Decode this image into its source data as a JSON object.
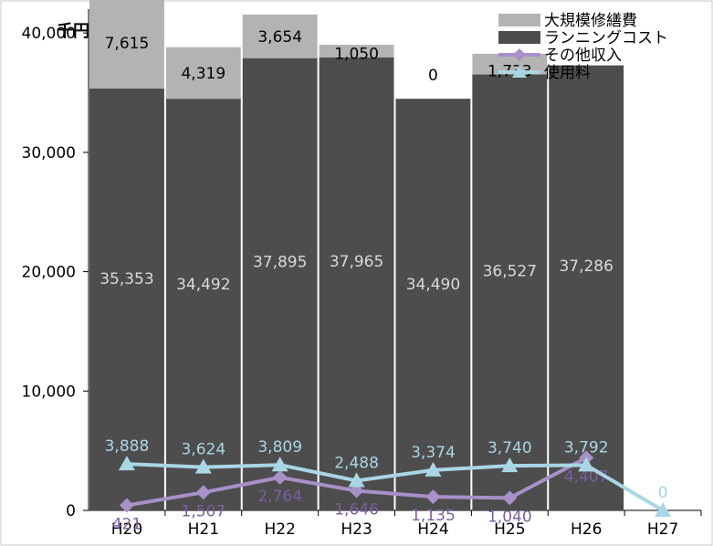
{
  "chart_data": {
    "type": "bar",
    "unit_label": "千円",
    "categories": [
      "H20",
      "H21",
      "H22",
      "H23",
      "H24",
      "H25",
      "H26",
      "H27"
    ],
    "ylim": [
      0,
      42000
    ],
    "yticks": [
      0,
      10000,
      20000,
      30000,
      40000
    ],
    "ytick_labels": [
      "0",
      "10,000",
      "20,000",
      "30,000",
      "40,000"
    ],
    "grid": false,
    "legend_position": "top-right",
    "stacked_bars": [
      {
        "name": "ランニングコスト",
        "color": "#4d4d4d",
        "label_color": "#d9d9d9",
        "values": [
          35353,
          34492,
          37895,
          37965,
          34490,
          36527,
          37286,
          null
        ],
        "labels": [
          "35,353",
          "34,492",
          "37,895",
          "37,965",
          "34,490",
          "36,527",
          "37,286",
          ""
        ]
      },
      {
        "name": "大規模修繕費",
        "color": "#b3b3b3",
        "label_color": "#000000",
        "values": [
          7615,
          4319,
          3654,
          1050,
          0,
          1733,
          null,
          null
        ],
        "labels": [
          "7,615",
          "4,319",
          "3,654",
          "1,050",
          "0",
          "1,733",
          "",
          ""
        ]
      }
    ],
    "lines": [
      {
        "name": "その他収入",
        "color": "#a890c8",
        "label_color": "#7a5fa0",
        "marker": "diamond",
        "values": [
          421,
          1507,
          2764,
          1646,
          1135,
          1040,
          4407,
          null
        ],
        "labels": [
          "421",
          "1,507",
          "2,764",
          "1,646",
          "1,135",
          "1,040",
          "4,407",
          ""
        ]
      },
      {
        "name": "使用料",
        "color": "#a9d6e5",
        "label_color": "#a9d6e5",
        "marker": "triangle",
        "values": [
          3888,
          3624,
          3809,
          2488,
          3374,
          3740,
          3792,
          0
        ],
        "labels": [
          "3,888",
          "3,624",
          "3,809",
          "2,488",
          "3,374",
          "3,740",
          "3,792",
          "0"
        ]
      }
    ]
  }
}
